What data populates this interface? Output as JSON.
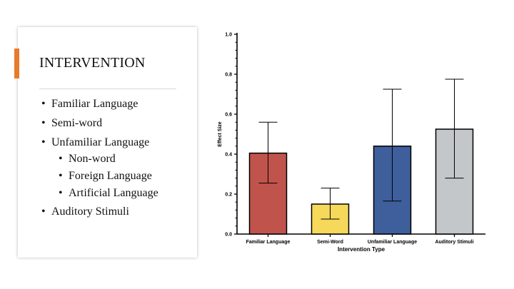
{
  "slide": {
    "heading": "INTERVENTION",
    "accent_color": "#e87a2c",
    "bullets": [
      {
        "text": "Familiar Language",
        "level": 1
      },
      {
        "text": "Semi-word",
        "level": 1
      },
      {
        "text": "Unfamiliar Language",
        "level": 1
      },
      {
        "text": "Non-word",
        "level": 2
      },
      {
        "text": "Foreign Language",
        "level": 2
      },
      {
        "text": "Artificial Language",
        "level": 2
      },
      {
        "text": "Auditory Stimuli",
        "level": 1
      }
    ]
  },
  "chart_data": {
    "type": "bar",
    "categories": [
      "Familiar Language",
      "Semi-Word",
      "Unfamiliar Language",
      "Auditory Stimuli"
    ],
    "values": [
      0.405,
      0.15,
      0.44,
      0.525
    ],
    "error_low": [
      0.255,
      0.075,
      0.165,
      0.28
    ],
    "error_high": [
      0.56,
      0.23,
      0.725,
      0.775
    ],
    "colors": [
      "#c0544d",
      "#f6d85a",
      "#3e5f9b",
      "#c3c7c9"
    ],
    "xlabel": "Intervention Type",
    "ylabel": "Effect Size",
    "ylim": [
      0,
      1
    ],
    "yticks": [
      "0.0",
      "0.2",
      "0.4",
      "0.6",
      "0.8",
      "1.0"
    ],
    "grid": false
  }
}
